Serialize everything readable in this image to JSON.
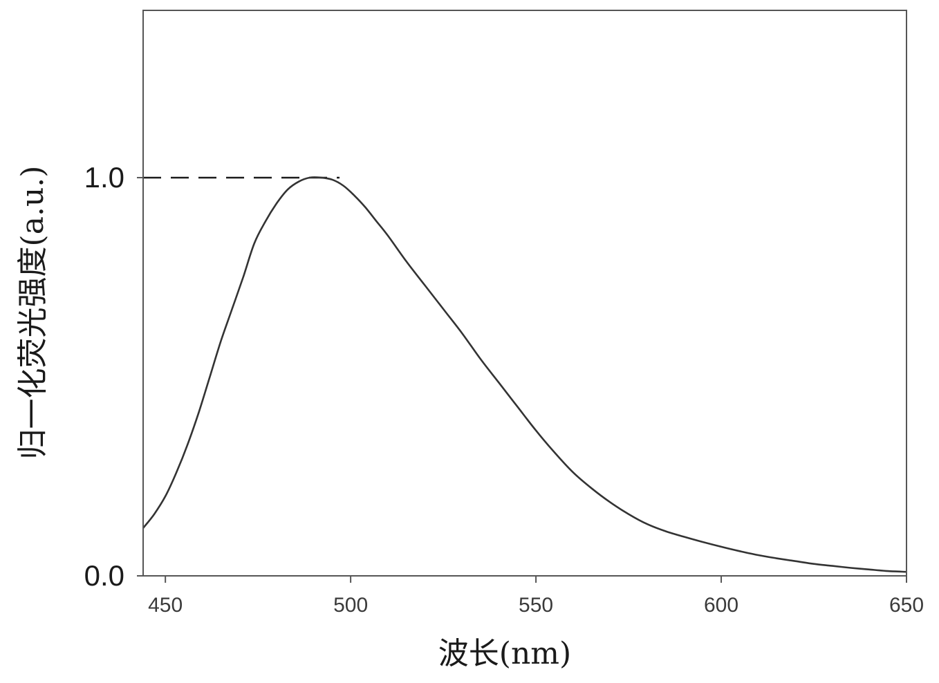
{
  "chart_data": {
    "type": "line",
    "title": "",
    "xlabel": "波长(nm)",
    "ylabel": "归一化荧光强度(a.u.)",
    "xlim": [
      444,
      650
    ],
    "ylim": [
      0,
      1.42
    ],
    "x_ticks": [
      450,
      500,
      550,
      600,
      650
    ],
    "x_tick_labels": [
      "450",
      "500",
      "550",
      "600",
      "650"
    ],
    "y_ticks": [
      0,
      1
    ],
    "y_tick_labels": [
      "0.0",
      "1.0"
    ],
    "grid": false,
    "legend": "none",
    "line_color": "#333333",
    "reference_line": {
      "style": "dashed",
      "y": 1.0,
      "x_start": 444,
      "x_end": 497
    },
    "series": [
      {
        "x": [
          444,
          447,
          450,
          453,
          456,
          459,
          462,
          465,
          468,
          471,
          474,
          477,
          480,
          483,
          486,
          489,
          492,
          495,
          498,
          501,
          504,
          507,
          510,
          515,
          520,
          525,
          530,
          535,
          540,
          545,
          550,
          555,
          560,
          565,
          570,
          575,
          580,
          585,
          590,
          595,
          600,
          605,
          610,
          615,
          620,
          625,
          630,
          635,
          640,
          645,
          650
        ],
        "y": [
          0.12,
          0.155,
          0.2,
          0.26,
          0.33,
          0.41,
          0.5,
          0.59,
          0.67,
          0.75,
          0.835,
          0.89,
          0.935,
          0.97,
          0.99,
          1.0,
          1.0,
          0.995,
          0.98,
          0.955,
          0.925,
          0.89,
          0.855,
          0.79,
          0.73,
          0.67,
          0.61,
          0.545,
          0.485,
          0.425,
          0.365,
          0.31,
          0.26,
          0.22,
          0.185,
          0.155,
          0.13,
          0.112,
          0.098,
          0.085,
          0.073,
          0.062,
          0.052,
          0.044,
          0.037,
          0.03,
          0.025,
          0.02,
          0.016,
          0.012,
          0.01
        ]
      }
    ]
  }
}
